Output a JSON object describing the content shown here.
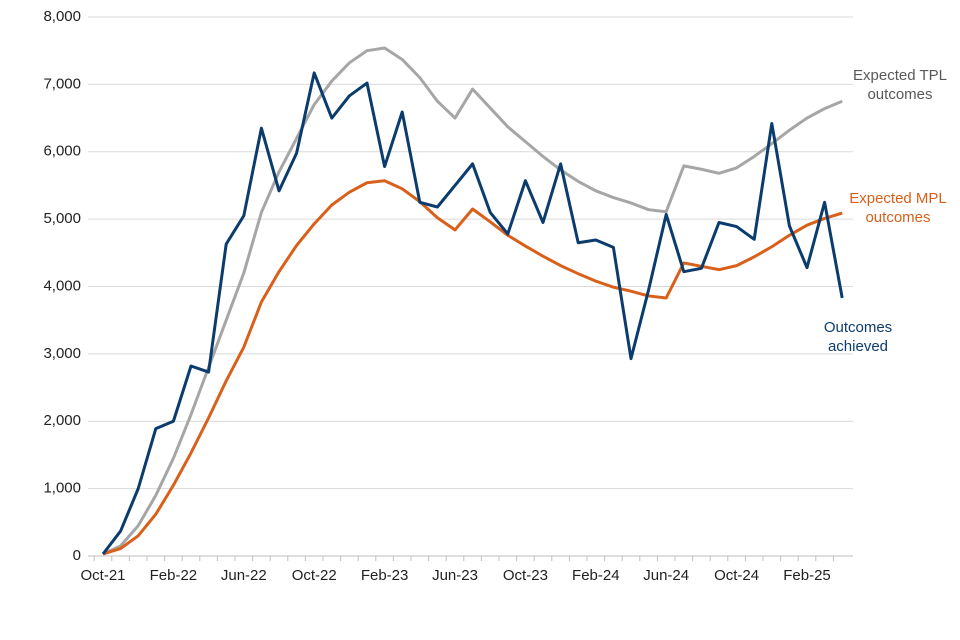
{
  "chart_data": {
    "type": "line",
    "categories": [
      "Oct-21",
      null,
      null,
      null,
      "Feb-22",
      null,
      null,
      null,
      "Jun-22",
      null,
      null,
      null,
      "Oct-22",
      null,
      null,
      null,
      "Feb-23",
      null,
      null,
      null,
      "Jun-23",
      null,
      null,
      null,
      "Oct-23",
      null,
      null,
      null,
      "Feb-24",
      null,
      null,
      null,
      "Jun-24",
      null,
      null,
      null,
      "Oct-24",
      null,
      null,
      null,
      "Feb-25",
      null,
      null
    ],
    "series": [
      {
        "name": "Expected TPL outcomes",
        "color": "#a6a6a6",
        "values": [
          30,
          150,
          450,
          900,
          1450,
          2100,
          2800,
          3500,
          4200,
          5100,
          5700,
          6200,
          6700,
          7050,
          7320,
          7500,
          7540,
          7370,
          7100,
          6750,
          6500,
          6930,
          6650,
          6370,
          6150,
          5930,
          5730,
          5560,
          5420,
          5320,
          5240,
          5140,
          5110,
          5790,
          5740,
          5680,
          5760,
          5930,
          6120,
          6320,
          6500,
          6640,
          6750
        ]
      },
      {
        "name": "Expected MPL outcomes",
        "color": "#d9601a",
        "values": [
          30,
          110,
          300,
          620,
          1050,
          1530,
          2050,
          2600,
          3100,
          3770,
          4220,
          4610,
          4930,
          5210,
          5400,
          5540,
          5570,
          5450,
          5260,
          5020,
          4840,
          5150,
          4960,
          4760,
          4600,
          4450,
          4310,
          4190,
          4080,
          3990,
          3930,
          3860,
          3830,
          4350,
          4300,
          4250,
          4310,
          4440,
          4590,
          4760,
          4910,
          5010,
          5090
        ]
      },
      {
        "name": "Outcomes achieved",
        "color": "#0b3c6e",
        "values": [
          30,
          370,
          1000,
          1890,
          2000,
          2820,
          2730,
          4630,
          5050,
          6350,
          5420,
          5980,
          7170,
          6500,
          6830,
          7020,
          5780,
          6590,
          5250,
          5180,
          5500,
          5820,
          5100,
          4780,
          5570,
          4950,
          5820,
          4650,
          4690,
          4580,
          2930,
          3950,
          5070,
          4220,
          4270,
          4950,
          4890,
          4700,
          6420,
          4900,
          4280,
          5250,
          3830
        ]
      }
    ],
    "ylim": [
      0,
      8000
    ],
    "yticks": [
      0,
      {
        "value": 1000,
        "label": "1,000"
      },
      {
        "value": 2000,
        "label": "2,000"
      },
      {
        "value": 3000,
        "label": "3,000"
      },
      {
        "value": 4000,
        "label": "4,000"
      },
      {
        "value": 5000,
        "label": "5,000"
      },
      {
        "value": 6000,
        "label": "6,000"
      },
      {
        "value": 7000,
        "label": "7,000"
      },
      {
        "value": 8000,
        "label": "8,000"
      }
    ],
    "grid": true
  }
}
